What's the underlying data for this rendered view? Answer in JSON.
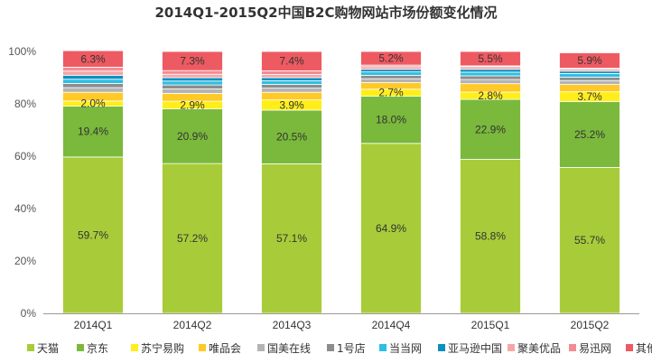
{
  "chart_data": {
    "type": "bar",
    "stacked": true,
    "title": "2014Q1-2015Q2中国B2C购物网站市场份额变化情况",
    "categories": [
      "2014Q1",
      "2014Q2",
      "2014Q3",
      "2014Q4",
      "2015Q1",
      "2015Q2"
    ],
    "ylim": [
      0,
      100
    ],
    "yticks": [
      "0%",
      "20%",
      "40%",
      "60%",
      "80%",
      "100%"
    ],
    "grid": false,
    "legend_position": "bottom",
    "series": [
      {
        "name": "天猫",
        "color": "#a8cc39",
        "values": [
          59.7,
          57.2,
          57.1,
          64.9,
          58.8,
          55.7
        ],
        "labels": [
          "59.7%",
          "57.2%",
          "57.1%",
          "64.9%",
          "58.8%",
          "55.7%"
        ]
      },
      {
        "name": "京东",
        "color": "#7ab93c",
        "values": [
          19.4,
          20.9,
          20.5,
          18.0,
          22.9,
          25.2
        ],
        "labels": [
          "19.4%",
          "20.9%",
          "20.5%",
          "18.0%",
          "22.9%",
          "25.2%"
        ]
      },
      {
        "name": "苏宁易购",
        "color": "#ffee1a",
        "values": [
          2.0,
          2.9,
          3.9,
          2.7,
          2.8,
          3.7
        ],
        "labels": [
          "2.0%",
          "2.9%",
          "3.9%",
          "2.7%",
          "2.8%",
          "3.7%"
        ]
      },
      {
        "name": "唯品会",
        "color": "#ffc926",
        "values": [
          3.3,
          3.0,
          2.9,
          2.5,
          3.2,
          2.8
        ],
        "labels": null
      },
      {
        "name": "国美在线",
        "color": "#b4b4b4",
        "values": [
          1.8,
          1.7,
          1.6,
          1.5,
          1.6,
          1.5
        ],
        "labels": null
      },
      {
        "name": "1号店",
        "color": "#8c8c8c",
        "values": [
          1.6,
          1.5,
          1.4,
          1.3,
          1.4,
          1.3
        ],
        "labels": null
      },
      {
        "name": "当当网",
        "color": "#2cc0e3",
        "values": [
          1.6,
          1.5,
          1.4,
          1.3,
          1.4,
          1.4
        ],
        "labels": null
      },
      {
        "name": "亚马逊中国",
        "color": "#0e8fc1",
        "values": [
          1.5,
          1.3,
          1.2,
          1.0,
          1.1,
          0.9
        ],
        "labels": null
      },
      {
        "name": "聚美优品",
        "color": "#f7a6a6",
        "values": [
          1.6,
          1.3,
          1.2,
          1.0,
          1.0,
          0.8
        ],
        "labels": null
      },
      {
        "name": "易迅网",
        "color": "#f58a93",
        "values": [
          1.5,
          1.4,
          1.4,
          0.6,
          0.3,
          0.3
        ],
        "labels": null
      },
      {
        "name": "其他",
        "color": "#ee5a62",
        "values": [
          6.3,
          7.3,
          7.4,
          5.2,
          5.5,
          5.9
        ],
        "labels": [
          "6.3%",
          "7.3%",
          "7.4%",
          "5.2%",
          "5.5%",
          "5.9%"
        ]
      }
    ]
  }
}
